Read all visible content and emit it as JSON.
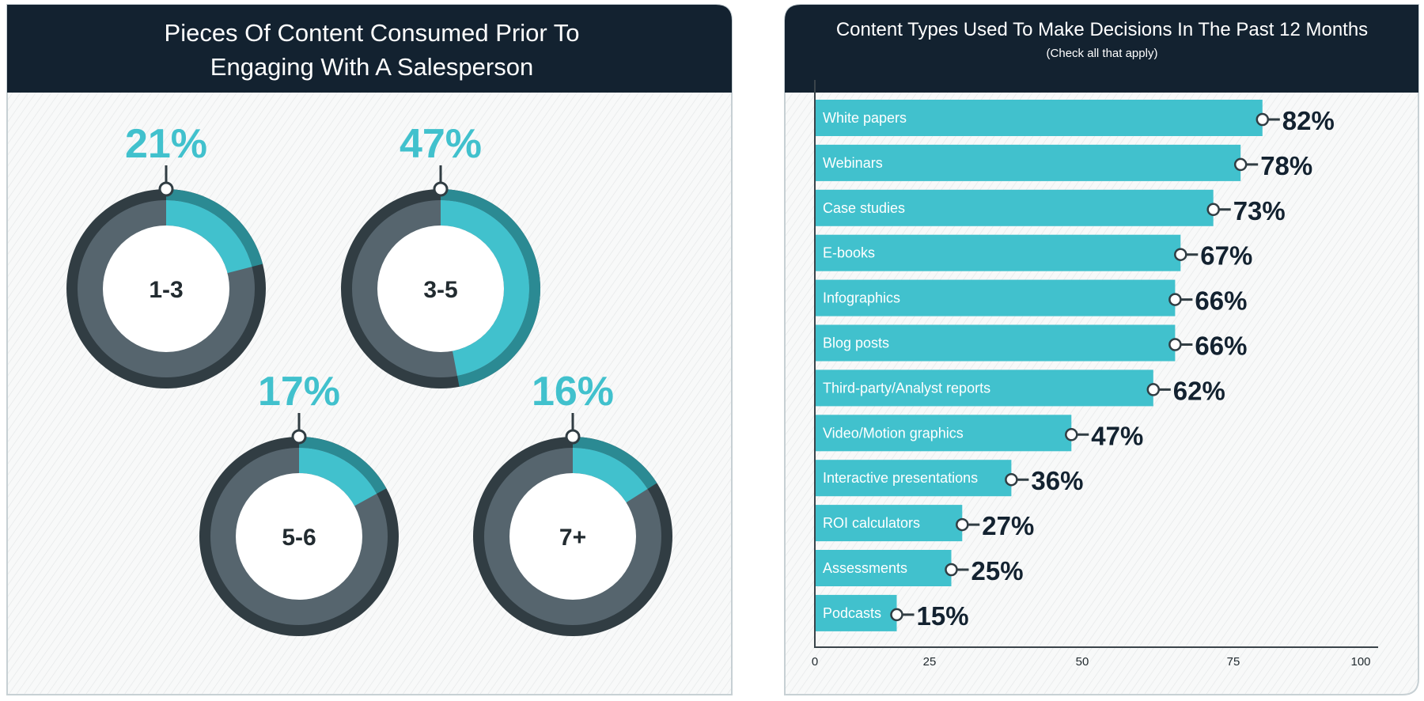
{
  "colors": {
    "header": "#132230",
    "teal": "#41c1cd",
    "teal_dark": "#2b8a93",
    "ring_gray": "#56656e",
    "ring_dark": "#313d43",
    "value_text": "#132230"
  },
  "chart_data": [
    {
      "type": "pie",
      "title": "Pieces Of Content Consumed Prior To Engaging With A Salesperson",
      "title_lines": [
        "Pieces Of Content Consumed Prior To",
        "Engaging With A Salesperson"
      ],
      "categories": [
        "1-3",
        "3-5",
        "5-6",
        "7+"
      ],
      "values": [
        21,
        47,
        17,
        16
      ],
      "value_labels": [
        "21%",
        "47%",
        "17%",
        "16%"
      ]
    },
    {
      "type": "bar",
      "orientation": "horizontal",
      "title": "Content Types Used To Make Decisions In The Past 12 Months",
      "subtitle": "(Check all that apply)",
      "categories": [
        "White papers",
        "Webinars",
        "Case studies",
        "E-books",
        "Infographics",
        "Blog posts",
        "Third-party/Analyst reports",
        "Video/Motion graphics",
        "Interactive presentations",
        "ROI calculators",
        "Assessments",
        "Podcasts"
      ],
      "values": [
        82,
        78,
        73,
        67,
        66,
        66,
        62,
        47,
        36,
        27,
        25,
        15
      ],
      "value_labels": [
        "82%",
        "78%",
        "73%",
        "67%",
        "66%",
        "66%",
        "62%",
        "47%",
        "36%",
        "27%",
        "25%",
        "15%"
      ],
      "x_ticks": [
        "0",
        "25",
        "50",
        "75",
        "100"
      ],
      "grid": false
    }
  ]
}
